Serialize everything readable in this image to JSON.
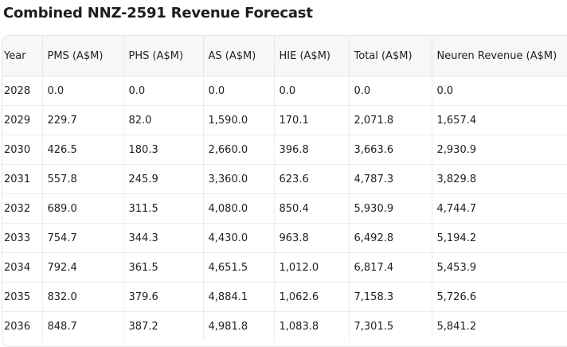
{
  "title": "Combined NNZ-2591 Revenue Forecast",
  "table": {
    "columns": [
      "Year",
      "PMS (A$M)",
      "PHS (A$M)",
      "AS (A$M)",
      "HIE (A$M)",
      "Total (A$M)",
      "Neuren Revenue (A$M)"
    ],
    "rows": [
      [
        "2028",
        "0.0",
        "0.0",
        "0.0",
        "0.0",
        "0.0",
        "0.0"
      ],
      [
        "2029",
        "229.7",
        "82.0",
        "1,590.0",
        "170.1",
        "2,071.8",
        "1,657.4"
      ],
      [
        "2030",
        "426.5",
        "180.3",
        "2,660.0",
        "396.8",
        "3,663.6",
        "2,930.9"
      ],
      [
        "2031",
        "557.8",
        "245.9",
        "3,360.0",
        "623.6",
        "4,787.3",
        "3,829.8"
      ],
      [
        "2032",
        "689.0",
        "311.5",
        "4,080.0",
        "850.4",
        "5,930.9",
        "4,744.7"
      ],
      [
        "2033",
        "754.7",
        "344.3",
        "4,430.0",
        "963.8",
        "6,492.8",
        "5,194.2"
      ],
      [
        "2034",
        "792.4",
        "361.5",
        "4,651.5",
        "1,012.0",
        "6,817.4",
        "5,453.9"
      ],
      [
        "2035",
        "832.0",
        "379.6",
        "4,884.1",
        "1,062.6",
        "7,158.3",
        "5,726.6"
      ],
      [
        "2036",
        "848.7",
        "387.2",
        "4,981.8",
        "1,083.8",
        "7,301.5",
        "5,841.2"
      ]
    ]
  }
}
